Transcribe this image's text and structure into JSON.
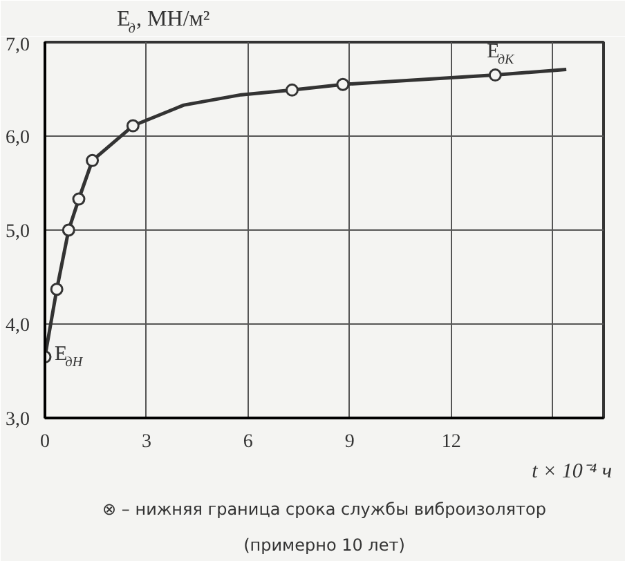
{
  "chart_data": {
    "type": "line",
    "xlabel": "t × 10⁻⁴ ч",
    "ylabel": "E$_{д}$, МН/м²",
    "xlim": [
      0,
      16.5
    ],
    "xticks": [
      0,
      3,
      6,
      9,
      12,
      {
        "value": 15,
        "label": null
      }
    ],
    "ylim": [
      3.0,
      7.0
    ],
    "yticks": [
      {
        "value": 3,
        "label": "3,0"
      },
      {
        "value": 4,
        "label": "4,0"
      },
      {
        "value": 5,
        "label": "5,0"
      },
      {
        "value": 6,
        "label": "6,0"
      },
      {
        "value": 7,
        "label": "7,0"
      }
    ],
    "grid": true,
    "series": [
      {
        "color": "#333333",
        "marker": "none",
        "x": [
          0,
          0.35,
          0.7,
          1.0,
          1.4,
          2.6,
          4.1,
          5.8,
          7.3,
          8.8,
          13.3,
          15.4
        ],
        "values": [
          3.65,
          4.37,
          5.0,
          5.33,
          5.74,
          6.11,
          6.33,
          6.44,
          6.49,
          6.55,
          6.65,
          6.71
        ]
      },
      {
        "type": "scatter",
        "color": "#333333",
        "marker": "circle",
        "x": [
          0,
          0.35,
          0.7,
          1.0,
          1.4,
          2.6,
          7.3,
          8.8,
          13.3
        ],
        "values": [
          3.65,
          4.37,
          5.0,
          5.33,
          5.74,
          6.11,
          6.49,
          6.55,
          6.65
        ]
      }
    ],
    "annotations": [
      {
        "text": "E$_{дН}$",
        "x": 0,
        "y": 3.65
      },
      {
        "text": "E$_{дК}$",
        "x": 13.3,
        "y": 6.65
      },
      "⊗ – нижняя граница срока службы виброизолятор\n(примерно 10 лет)"
    ]
  }
}
